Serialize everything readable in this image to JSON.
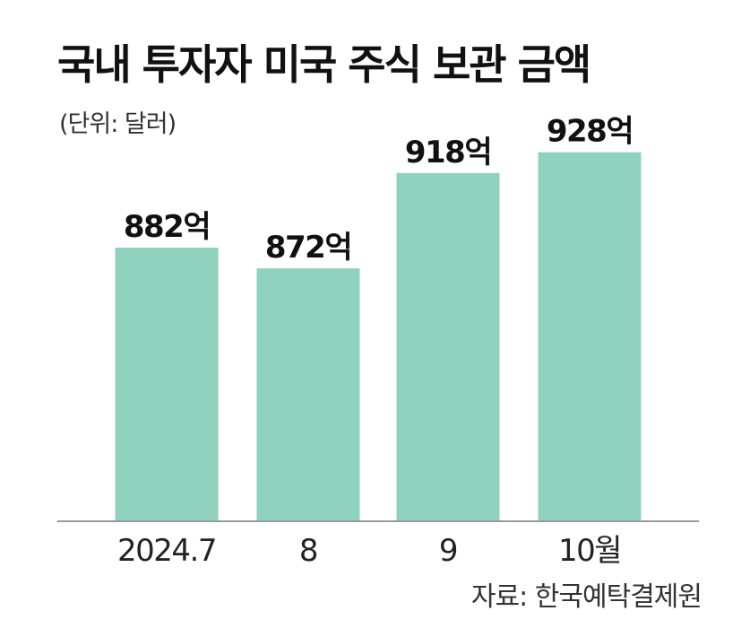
{
  "title": "국내 투자자 미국 주식 보관 금액",
  "unit": "(단위: 달러)",
  "source": "자료: 한국예탁결제원",
  "bar_color": "#8ed2bd",
  "axis_color": "#9a9a9a",
  "chart_data": {
    "type": "bar",
    "title": "국내 투자자 미국 주식 보관 금액",
    "categories": [
      "2024.7",
      "8",
      "9",
      "10월"
    ],
    "values": [
      882,
      872,
      918,
      928
    ],
    "data_labels": [
      "882억",
      "872억",
      "918억",
      "928억"
    ],
    "unit": "억 달러",
    "ylim": [
      750,
      940
    ],
    "grid": false,
    "legend": "none"
  }
}
